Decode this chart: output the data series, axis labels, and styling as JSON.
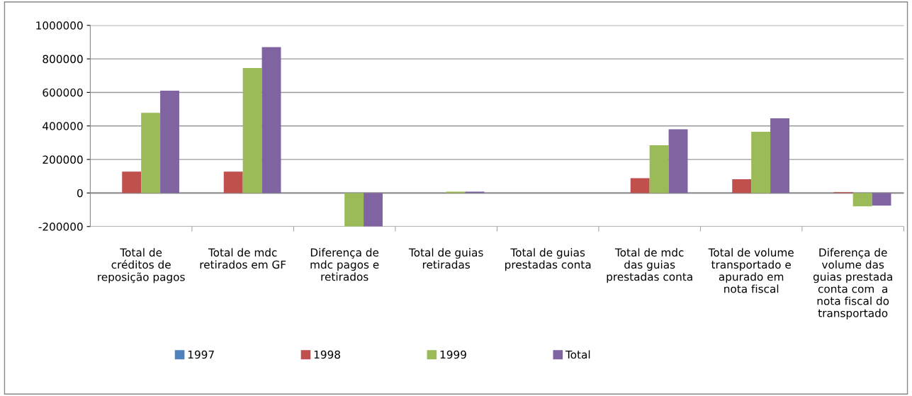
{
  "chart_data": {
    "type": "bar",
    "categories": [
      "Total de\ncréditos de\nreposição pagos",
      "Total de mdc\nretirados em GF",
      "Diferença de\nmdc pagos e\nretirados",
      "Total de guias\nretiradas",
      "Total de guias\nprestadas conta",
      "Total de mdc\ndas guias\nprestadas conta",
      "Total de volume\ntransportado e\napurado em\nnota fiscal",
      "Diferença de\nvolume das\nguias prestada\nconta com  a\nnota fiscal do\ntransportado"
    ],
    "series": [
      {
        "name": "1997",
        "color": "#4f81bd",
        "values": [
          0,
          0,
          0,
          0,
          0,
          0,
          0,
          0
        ]
      },
      {
        "name": "1998",
        "color": "#c0504d",
        "values": [
          128000,
          128000,
          0,
          0,
          0,
          88000,
          82000,
          5000
        ]
      },
      {
        "name": "1999",
        "color": "#9bbb59",
        "values": [
          478000,
          745000,
          -200000,
          8000,
          0,
          285000,
          365000,
          -80000
        ]
      },
      {
        "name": "Total",
        "color": "#8064a2",
        "values": [
          610000,
          870000,
          -200000,
          8000,
          0,
          380000,
          445000,
          -75000
        ]
      }
    ],
    "ylim": [
      -200000,
      1000000
    ],
    "yticks": [
      -200000,
      0,
      200000,
      400000,
      600000,
      800000,
      1000000
    ],
    "grid": "y",
    "legend": "bottom"
  }
}
